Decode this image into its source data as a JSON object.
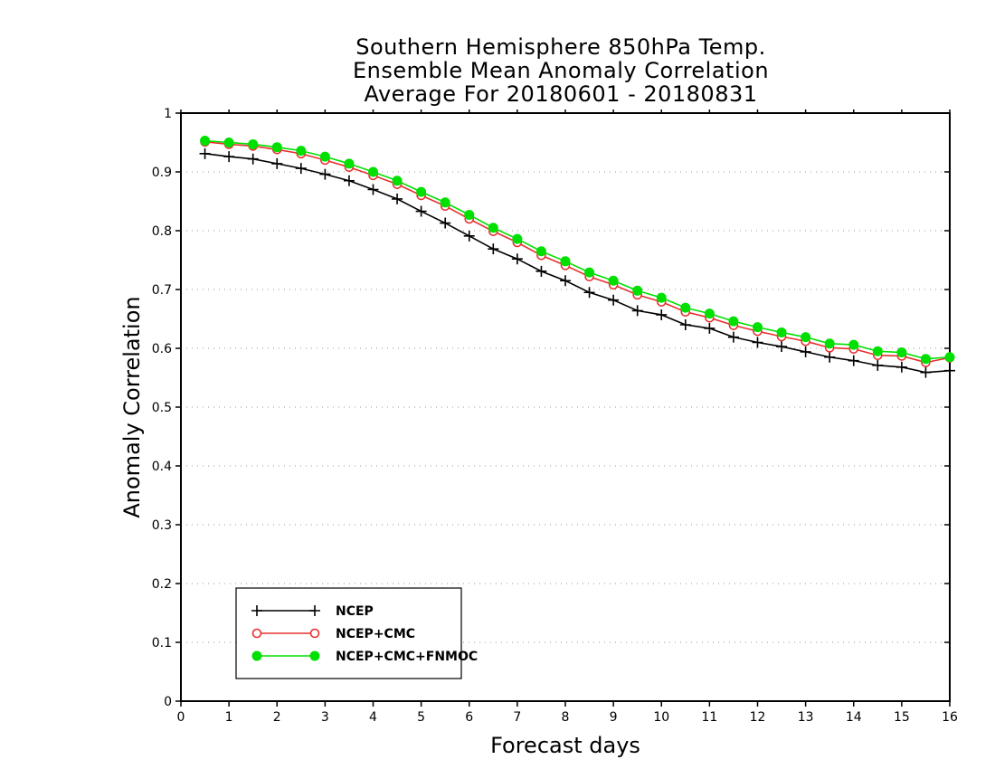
{
  "chart_data": {
    "type": "line",
    "title_lines": [
      "Southern Hemisphere 850hPa Temp.",
      "Ensemble Mean Anomaly Correlation",
      "Average For 20180601 - 20180831"
    ],
    "xlabel": "Forecast days",
    "ylabel": "Anomaly Correlation",
    "xlim": [
      0,
      16
    ],
    "ylim": [
      0,
      1
    ],
    "x_ticks": [
      0,
      1,
      2,
      3,
      4,
      5,
      6,
      7,
      8,
      9,
      10,
      11,
      12,
      13,
      14,
      15,
      16
    ],
    "y_ticks": [
      0,
      0.1,
      0.2,
      0.3,
      0.4,
      0.5,
      0.6,
      0.7,
      0.8,
      0.9,
      1
    ],
    "y_tick_labels": [
      "0",
      "0.1",
      "0.2",
      "0.3",
      "0.4",
      "0.5",
      "0.6",
      "0.7",
      "0.8",
      "0.9",
      "1"
    ],
    "grid": "horizontal dotted",
    "legend_position": "bottom-left",
    "x": [
      0.5,
      1,
      1.5,
      2,
      2.5,
      3,
      3.5,
      4,
      4.5,
      5,
      5.5,
      6,
      6.5,
      7,
      7.5,
      8,
      8.5,
      9,
      9.5,
      10,
      10.5,
      11,
      11.5,
      12,
      12.5,
      13,
      13.5,
      14,
      14.5,
      15,
      15.5,
      16
    ],
    "series": [
      {
        "name": "NCEP",
        "color": "#000000",
        "marker": "plus",
        "values": [
          0.931,
          0.926,
          0.922,
          0.914,
          0.906,
          0.896,
          0.885,
          0.87,
          0.854,
          0.833,
          0.813,
          0.791,
          0.769,
          0.752,
          0.731,
          0.715,
          0.695,
          0.682,
          0.664,
          0.657,
          0.64,
          0.634,
          0.619,
          0.61,
          0.603,
          0.594,
          0.585,
          0.579,
          0.571,
          0.568,
          0.559,
          0.562
        ]
      },
      {
        "name": "NCEP+CMC",
        "color": "#e83030",
        "marker": "open-circle",
        "values": [
          0.951,
          0.947,
          0.944,
          0.938,
          0.931,
          0.92,
          0.908,
          0.894,
          0.879,
          0.86,
          0.842,
          0.82,
          0.799,
          0.78,
          0.758,
          0.741,
          0.722,
          0.708,
          0.691,
          0.679,
          0.662,
          0.652,
          0.639,
          0.629,
          0.62,
          0.612,
          0.601,
          0.599,
          0.588,
          0.587,
          0.576,
          0.584
        ]
      },
      {
        "name": "NCEP+CMC+FNMOC",
        "color": "#00e000",
        "marker": "filled-circle",
        "values": [
          0.953,
          0.95,
          0.947,
          0.942,
          0.936,
          0.926,
          0.914,
          0.9,
          0.885,
          0.866,
          0.848,
          0.827,
          0.805,
          0.786,
          0.765,
          0.748,
          0.729,
          0.715,
          0.698,
          0.686,
          0.669,
          0.659,
          0.646,
          0.636,
          0.627,
          0.619,
          0.608,
          0.606,
          0.595,
          0.593,
          0.582,
          0.585
        ]
      }
    ]
  }
}
